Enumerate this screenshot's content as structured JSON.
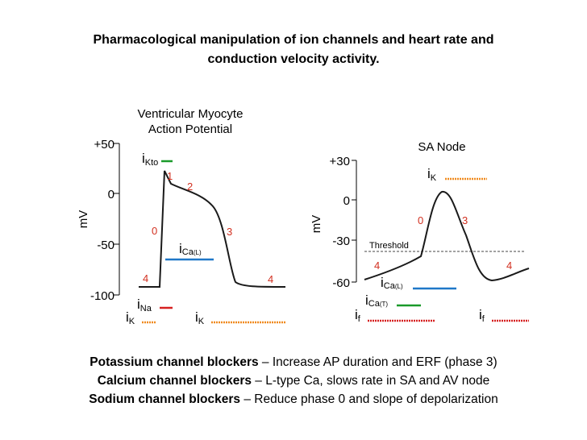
{
  "title": {
    "line1": "Pharmacological manipulation of ion channels and heart rate and",
    "line2": "conduction velocity activity."
  },
  "colors": {
    "red": "#d62020",
    "green": "#1a9a2a",
    "blue": "#1f78c8",
    "orange": "#f08a1e",
    "phase_text": "#d23020"
  },
  "ventricular": {
    "title_line1": "Ventricular Myocyte",
    "title_line2": "Action Potential",
    "ylabel": "mV",
    "ticks": [
      "+50",
      "0",
      "-50",
      "-100"
    ],
    "phases": [
      "1",
      "2",
      "0",
      "3",
      "4",
      "4"
    ],
    "currents": {
      "ikto_main": "i",
      "ikto_sub": "Kto",
      "ica_main": "i",
      "ica_sub": "Ca",
      "ica_subsub": "(L)",
      "ina_main": "i",
      "ina_sub": "Na",
      "ik1_main": "i",
      "ik1_sub": "K",
      "ik2_main": "i",
      "ik2_sub": "K"
    }
  },
  "sa_node": {
    "title": "SA Node",
    "ylabel": "mV",
    "ticks": [
      "+30",
      "0",
      "-30",
      "-60"
    ],
    "threshold_label": "Threshold",
    "phases": [
      "0",
      "3",
      "4",
      "4"
    ],
    "currents": {
      "ik_main": "i",
      "ik_sub": "K",
      "ical_main": "i",
      "ical_sub": "Ca",
      "ical_subsub": "(L)",
      "icat_main": "i",
      "icat_sub": "Ca",
      "icat_subsub": "(T)",
      "if1_main": "i",
      "if1_sub": "f",
      "if2_main": "i",
      "if2_sub": "f"
    }
  },
  "footer": [
    {
      "bold": "Potassium channel blockers",
      "text": " – Increase AP duration and ERF (phase 3)"
    },
    {
      "bold": "Calcium channel blockers",
      "text": " – L-type Ca, slows rate in SA and AV node"
    },
    {
      "bold": "Sodium channel blockers",
      "text": " – Reduce phase 0 and slope of depolarization"
    }
  ]
}
